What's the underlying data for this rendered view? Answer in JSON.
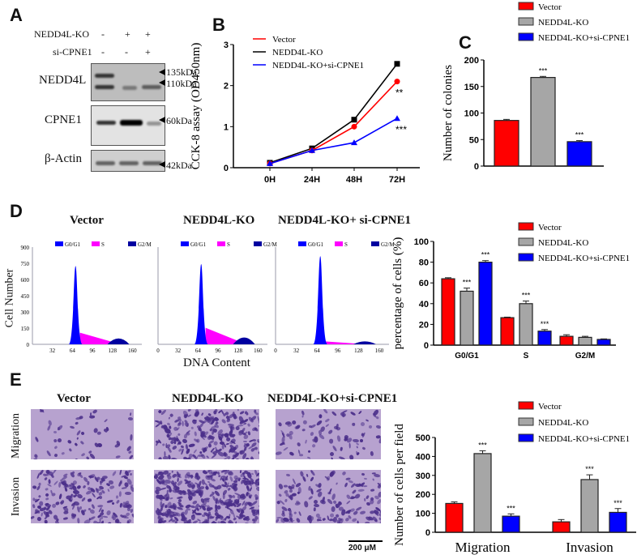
{
  "panels": {
    "a": "A",
    "b": "B",
    "c": "C",
    "d": "D",
    "e": "E"
  },
  "western": {
    "rows": [
      {
        "label": "NEDD4L-KO",
        "signs": [
          "-",
          "+",
          "+"
        ]
      },
      {
        "label": "si-CPNE1",
        "signs": [
          "-",
          "-",
          "+"
        ]
      }
    ],
    "blots": [
      {
        "label": "NEDD4L",
        "markers": [
          "135kDa",
          "110kDa"
        ]
      },
      {
        "label": "CPNE1",
        "markers": [
          "60kDa"
        ]
      },
      {
        "label": "β-Actin",
        "markers": [
          "42kDa"
        ]
      }
    ]
  },
  "flow": {
    "titles": [
      "Vector",
      "NEDD4L-KO",
      "NEDD4L-KO+ si-CPNE1"
    ],
    "legend": [
      "G0/G1",
      "S",
      "G2/M"
    ],
    "ylabel": "Cell Number",
    "xlabel": "DNA Content",
    "yticks": [
      "0",
      "150",
      "300",
      "450",
      "600",
      "750",
      "900"
    ],
    "xticks": [
      "0",
      "32",
      "64",
      "96",
      "128",
      "160"
    ]
  },
  "transwell": {
    "titles": [
      "Vector",
      "NEDD4L-KO",
      "NEDD4L-KO+si-CPNE1"
    ],
    "rows": [
      "Migration",
      "Invasion"
    ],
    "scale": "200 μM"
  },
  "colors": {
    "vector": "#ff0000",
    "ko": "#a6a6a6",
    "si": "#0000ff",
    "ko_line": "#000000",
    "s_phase": "#ff00ff",
    "g2m": "#0000a0"
  },
  "chart_data": [
    {
      "type": "line",
      "ylabel": "CCK-8 assay (OD450nm)",
      "categories": [
        "0H",
        "24H",
        "48H",
        "72H"
      ],
      "ylim": [
        0,
        3
      ],
      "yticks": [
        "0",
        "1",
        "2",
        "3"
      ],
      "series": [
        {
          "name": "Vector",
          "values": [
            0.1,
            0.42,
            1.0,
            2.1
          ],
          "marker": "circle"
        },
        {
          "name": "NEDD4L-KO",
          "values": [
            0.12,
            0.47,
            1.17,
            2.53
          ],
          "marker": "square"
        },
        {
          "name": "NEDD4L-KO+si-CPNE1",
          "values": [
            0.1,
            0.42,
            0.61,
            1.2
          ],
          "marker": "triangle"
        }
      ],
      "annotations": [
        {
          "series": "Vector",
          "text": "**"
        },
        {
          "series": "NEDD4L-KO+si-CPNE1",
          "text": "***"
        }
      ]
    },
    {
      "type": "bar",
      "ylabel": "Number of colonies",
      "categories": [
        ""
      ],
      "ylim": [
        0,
        200
      ],
      "yticks": [
        "0",
        "50",
        "100",
        "150",
        "200"
      ],
      "series": [
        {
          "name": "Vector",
          "values": [
            86
          ],
          "err": [
            2
          ],
          "sig": [
            ""
          ]
        },
        {
          "name": "NEDD4L-KO",
          "values": [
            167
          ],
          "err": [
            2
          ],
          "sig": [
            "***"
          ]
        },
        {
          "name": "NEDD4L-KO+si-CPNE1",
          "values": [
            46
          ],
          "err": [
            2
          ],
          "sig": [
            "***"
          ]
        }
      ]
    },
    {
      "type": "bar",
      "ylabel": "percentage of cells (%)",
      "categories": [
        "G0/G1",
        "S",
        "G2/M"
      ],
      "ylim": [
        0,
        100
      ],
      "yticks": [
        "0",
        "20",
        "40",
        "60",
        "80",
        "100"
      ],
      "series": [
        {
          "name": "Vector",
          "values": [
            64,
            26.5,
            8.5
          ],
          "err": [
            1,
            0.5,
            1.5
          ],
          "sig": [
            "",
            "",
            ""
          ]
        },
        {
          "name": "NEDD4L-KO",
          "values": [
            52,
            40,
            7.5
          ],
          "err": [
            3,
            2.5,
            1
          ],
          "sig": [
            "***",
            "***",
            ""
          ]
        },
        {
          "name": "NEDD4L-KO+si-CPNE1",
          "values": [
            80,
            13.5,
            5.5
          ],
          "err": [
            1.5,
            1.5,
            0.5
          ],
          "sig": [
            "***",
            "***",
            ""
          ]
        }
      ]
    },
    {
      "type": "bar",
      "ylabel": "Number of cells per field",
      "categories": [
        "Migration",
        "Invasion"
      ],
      "ylim": [
        0,
        500
      ],
      "yticks": [
        "0",
        "100",
        "200",
        "300",
        "400",
        "500"
      ],
      "series": [
        {
          "name": "Vector",
          "values": [
            152,
            55
          ],
          "err": [
            8,
            12
          ],
          "sig": [
            "",
            ""
          ]
        },
        {
          "name": "NEDD4L-KO",
          "values": [
            415,
            278
          ],
          "err": [
            15,
            25
          ],
          "sig": [
            "***",
            "***"
          ]
        },
        {
          "name": "NEDD4L-KO+si-CPNE1",
          "values": [
            85,
            105
          ],
          "err": [
            12,
            20
          ],
          "sig": [
            "***",
            "***"
          ]
        }
      ]
    }
  ]
}
